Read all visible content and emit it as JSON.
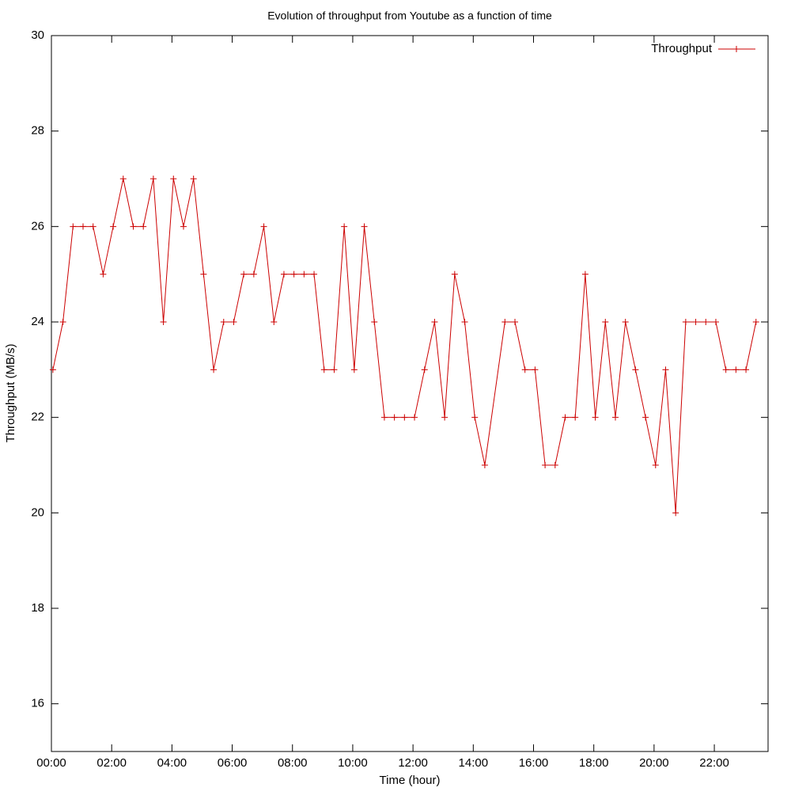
{
  "chart_data": {
    "type": "line",
    "title": "Evolution of throughput from Youtube as a function of time",
    "x_label": "Time (hour)",
    "y_label": "Throughput (MB/s)",
    "x": [
      "00:03",
      "00:23",
      "00:43",
      "01:03",
      "01:23",
      "01:43",
      "02:03",
      "02:23",
      "02:43",
      "03:03",
      "03:23",
      "03:43",
      "04:03",
      "04:23",
      "04:43",
      "05:03",
      "05:23",
      "05:43",
      "06:03",
      "06:23",
      "06:43",
      "07:03",
      "07:23",
      "07:43",
      "08:03",
      "08:23",
      "08:43",
      "09:03",
      "09:23",
      "09:43",
      "10:03",
      "10:23",
      "10:43",
      "11:03",
      "11:23",
      "11:43",
      "12:03",
      "12:23",
      "12:43",
      "13:03",
      "13:23",
      "13:43",
      "14:03",
      "14:23",
      "15:03",
      "15:23",
      "15:43",
      "16:03",
      "16:23",
      "16:43",
      "17:03",
      "17:23",
      "17:43",
      "18:03",
      "18:23",
      "18:43",
      "19:03",
      "19:23",
      "19:43",
      "20:03",
      "20:23",
      "20:43",
      "21:03",
      "21:23",
      "21:43",
      "22:03",
      "22:23",
      "22:43",
      "23:03",
      "23:23"
    ],
    "series": [
      {
        "name": "Throughput",
        "color": "#cc0000",
        "values": [
          23,
          24,
          26,
          26,
          26,
          25,
          26,
          27,
          26,
          26,
          27,
          24,
          27,
          26,
          27,
          25,
          23,
          24,
          24,
          25,
          25,
          26,
          24,
          25,
          25,
          25,
          25,
          23,
          23,
          26,
          23,
          26,
          24,
          22,
          22,
          22,
          22,
          23,
          24,
          22,
          25,
          24,
          22,
          21,
          24,
          24,
          23,
          23,
          21,
          21,
          22,
          22,
          25,
          22,
          24,
          22,
          24,
          23,
          22,
          21,
          23,
          20,
          24,
          24,
          24,
          24,
          23,
          23,
          23,
          24
        ]
      }
    ],
    "xlim": [
      "00:00",
      "23:47"
    ],
    "xticks": [
      "00:00",
      "02:00",
      "04:00",
      "06:00",
      "08:00",
      "10:00",
      "12:00",
      "14:00",
      "16:00",
      "18:00",
      "20:00",
      "22:00"
    ],
    "ylim": [
      15,
      30
    ],
    "yticks": [
      16,
      18,
      20,
      22,
      24,
      26,
      28,
      30
    ],
    "legend": "top-right",
    "grid": false
  }
}
